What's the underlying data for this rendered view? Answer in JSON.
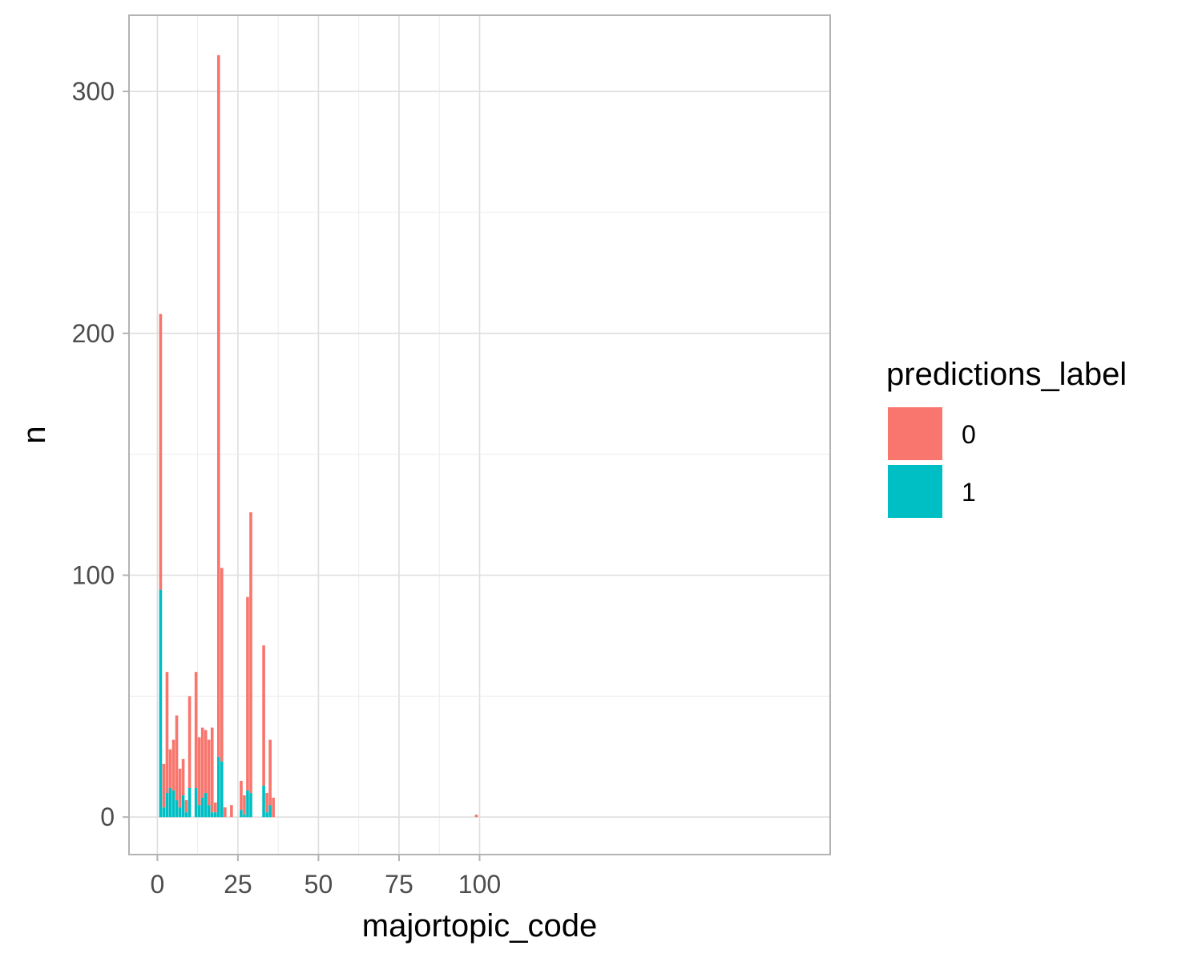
{
  "chart_data": {
    "type": "bar",
    "stacked": true,
    "xlabel": "majortopic_code",
    "ylabel": "n",
    "xlim": [
      -8.8,
      208.8
    ],
    "ylim": [
      -15.5,
      331.5
    ],
    "x_ticks": [
      0,
      25,
      50,
      75,
      100
    ],
    "y_ticks": [
      0,
      100,
      200,
      300
    ],
    "grid": true,
    "legend": {
      "title": "predictions_label",
      "position": "right",
      "entries": [
        {
          "label": "0",
          "color": "#F8766D"
        },
        {
          "label": "1",
          "color": "#00BFC4"
        }
      ]
    },
    "x": [
      1,
      2,
      3,
      4,
      5,
      6,
      7,
      8,
      9,
      10,
      12,
      13,
      14,
      15,
      16,
      17,
      18,
      19,
      20,
      21,
      23,
      26,
      27,
      28,
      29,
      33,
      34,
      35,
      36,
      99
    ],
    "series": [
      {
        "name": "1",
        "color": "#00BFC4",
        "values": [
          94,
          4,
          10,
          12,
          11,
          7,
          4,
          9,
          2,
          12,
          12,
          5,
          8,
          10,
          5,
          2,
          2,
          25,
          23,
          0,
          0,
          3,
          1,
          11,
          10,
          13,
          2,
          5,
          0,
          0
        ]
      },
      {
        "name": "0",
        "color": "#F8766D",
        "values": [
          114,
          18,
          50,
          16,
          21,
          35,
          16,
          15,
          5,
          38,
          48,
          28,
          29,
          26,
          27,
          35,
          4,
          290,
          80,
          4,
          5,
          12,
          8,
          80,
          116,
          58,
          8,
          27,
          8,
          1
        ]
      }
    ]
  }
}
